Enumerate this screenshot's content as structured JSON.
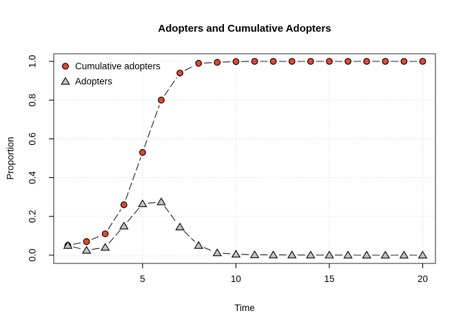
{
  "title": "Adopters and Cumulative Adopters",
  "xlabel": "Time",
  "ylabel": "Proportion",
  "colors": {
    "background": "#ffffff",
    "cumulative_fill": "#e8482d",
    "adopters_fill": "#c3c3c3",
    "marker_stroke": "#000000",
    "line": "#1a1a1a",
    "grid": "#d8d8d8",
    "box": "#4a4a4a",
    "tick": "#000000",
    "text": "#000000"
  },
  "legend": {
    "position": "top-left",
    "items": [
      {
        "label": "Cumulative adopters",
        "marker": "circle-icon"
      },
      {
        "label": "Adopters",
        "marker": "triangle-icon"
      }
    ]
  },
  "chart_data": {
    "type": "line",
    "title": "Adopters and Cumulative Adopters",
    "xlabel": "Time",
    "ylabel": "Proportion",
    "xlim": [
      1,
      20
    ],
    "ylim": [
      0,
      1
    ],
    "xticks": [
      5,
      10,
      15,
      20
    ],
    "yticks": [
      "0.0",
      "0.2",
      "0.4",
      "0.6",
      "0.8",
      "1.0"
    ],
    "grid": "dotted",
    "line_style": "dashed",
    "legend_position": "top-left",
    "x": [
      1,
      2,
      3,
      4,
      5,
      6,
      7,
      8,
      9,
      10,
      11,
      12,
      13,
      14,
      15,
      16,
      17,
      18,
      19,
      20
    ],
    "series": [
      {
        "name": "Cumulative adopters",
        "marker": "circle",
        "values": [
          0.05,
          0.07,
          0.11,
          0.26,
          0.53,
          0.8,
          0.94,
          0.99,
          0.995,
          0.999,
          1.0,
          1.0,
          1.0,
          1.0,
          1.0,
          1.0,
          1.0,
          1.0,
          1.0,
          1.0
        ]
      },
      {
        "name": "Adopters",
        "marker": "triangle",
        "values": [
          0.05,
          0.025,
          0.04,
          0.15,
          0.265,
          0.275,
          0.145,
          0.05,
          0.012,
          0.005,
          0.002,
          0.001,
          0.001,
          0.0005,
          0.0003,
          0.0002,
          0.0001,
          0.0001,
          0.0,
          0.0
        ]
      }
    ]
  }
}
